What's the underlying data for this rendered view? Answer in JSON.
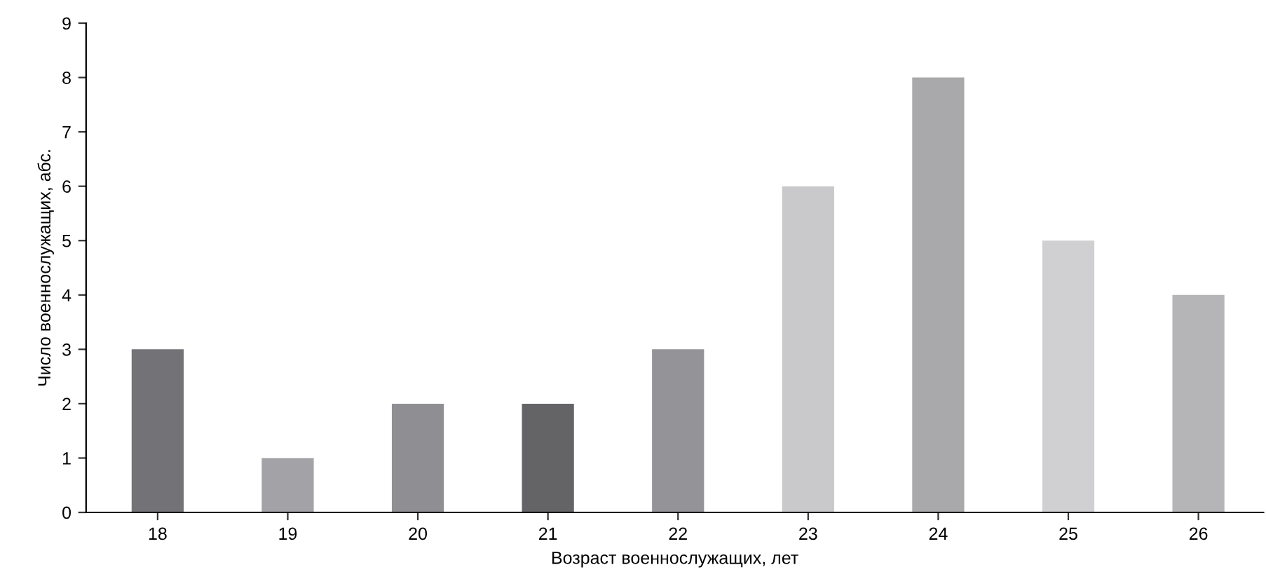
{
  "chart_data": {
    "type": "bar",
    "categories": [
      "18",
      "19",
      "20",
      "21",
      "22",
      "23",
      "24",
      "25",
      "26"
    ],
    "values": [
      3,
      1,
      2,
      2,
      3,
      6,
      8,
      5,
      4
    ],
    "colors": [
      "#737377",
      "#a3a3a7",
      "#8f8f93",
      "#646467",
      "#949498",
      "#c9c9cb",
      "#a9a9ac",
      "#d0d0d2",
      "#b5b5b8"
    ],
    "xlabel": "Возраст военнослужащих, лет",
    "ylabel": "Число военнослужащих, абс.",
    "ylim": [
      0,
      9
    ],
    "yticks": [
      0,
      1,
      2,
      3,
      4,
      5,
      6,
      7,
      8,
      9
    ],
    "grid": false,
    "legend": false
  }
}
